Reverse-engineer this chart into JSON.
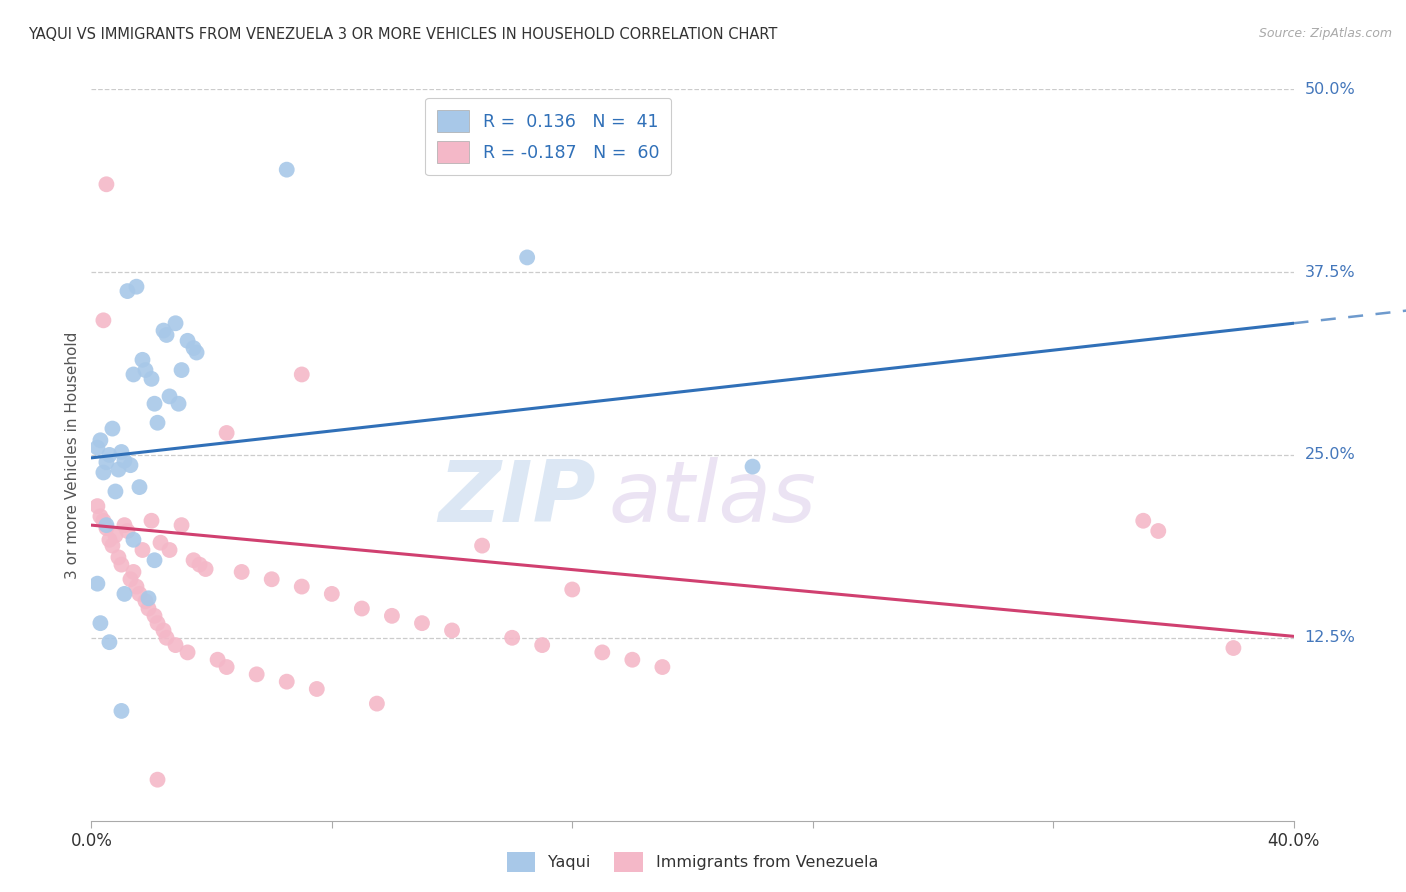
{
  "title": "YAQUI VS IMMIGRANTS FROM VENEZUELA 3 OR MORE VEHICLES IN HOUSEHOLD CORRELATION CHART",
  "source": "Source: ZipAtlas.com",
  "ylabel": "3 or more Vehicles in Household",
  "xlim": [
    0.0,
    40.0
  ],
  "ylim": [
    0.0,
    50.0
  ],
  "ytick_vals": [
    12.5,
    25.0,
    37.5,
    50.0
  ],
  "ytick_labels": [
    "12.5%",
    "25.0%",
    "37.5%",
    "50.0%"
  ],
  "legend_label1": "Yaqui",
  "legend_label2": "Immigrants from Venezuela",
  "blue_color": "#a8c8e8",
  "pink_color": "#f4b8c8",
  "blue_line_color": "#3070b8",
  "pink_line_color": "#d04070",
  "blue_intercept": 24.8,
  "blue_slope": 0.23,
  "pink_intercept": 20.2,
  "pink_slope": -0.19,
  "blue_scatter": [
    [
      0.2,
      25.5
    ],
    [
      0.3,
      26.0
    ],
    [
      0.4,
      23.8
    ],
    [
      0.5,
      24.5
    ],
    [
      0.6,
      25.0
    ],
    [
      0.7,
      26.8
    ],
    [
      0.8,
      22.5
    ],
    [
      0.9,
      24.0
    ],
    [
      1.0,
      25.2
    ],
    [
      1.1,
      24.6
    ],
    [
      1.2,
      36.2
    ],
    [
      1.3,
      24.3
    ],
    [
      1.4,
      30.5
    ],
    [
      1.5,
      36.5
    ],
    [
      1.6,
      22.8
    ],
    [
      1.7,
      31.5
    ],
    [
      1.8,
      30.8
    ],
    [
      1.9,
      15.2
    ],
    [
      2.0,
      30.2
    ],
    [
      2.1,
      17.8
    ],
    [
      2.2,
      27.2
    ],
    [
      2.4,
      33.5
    ],
    [
      2.5,
      33.2
    ],
    [
      2.6,
      29.0
    ],
    [
      2.8,
      34.0
    ],
    [
      2.9,
      28.5
    ],
    [
      3.0,
      30.8
    ],
    [
      3.2,
      32.8
    ],
    [
      3.4,
      32.3
    ],
    [
      3.5,
      32.0
    ],
    [
      0.3,
      13.5
    ],
    [
      0.5,
      20.2
    ],
    [
      0.6,
      12.2
    ],
    [
      1.0,
      7.5
    ],
    [
      1.4,
      19.2
    ],
    [
      2.1,
      28.5
    ],
    [
      6.5,
      44.5
    ],
    [
      14.5,
      38.5
    ],
    [
      22.0,
      24.2
    ],
    [
      0.2,
      16.2
    ],
    [
      1.1,
      15.5
    ]
  ],
  "pink_scatter": [
    [
      0.2,
      21.5
    ],
    [
      0.3,
      20.8
    ],
    [
      0.4,
      20.5
    ],
    [
      0.5,
      20.0
    ],
    [
      0.6,
      19.2
    ],
    [
      0.7,
      18.8
    ],
    [
      0.8,
      19.5
    ],
    [
      0.9,
      18.0
    ],
    [
      1.0,
      17.5
    ],
    [
      1.1,
      20.2
    ],
    [
      1.2,
      19.8
    ],
    [
      1.3,
      16.5
    ],
    [
      1.4,
      17.0
    ],
    [
      1.5,
      16.0
    ],
    [
      1.6,
      15.5
    ],
    [
      1.7,
      18.5
    ],
    [
      1.8,
      15.0
    ],
    [
      1.9,
      14.5
    ],
    [
      2.0,
      20.5
    ],
    [
      2.1,
      14.0
    ],
    [
      2.2,
      13.5
    ],
    [
      2.3,
      19.0
    ],
    [
      2.4,
      13.0
    ],
    [
      2.5,
      12.5
    ],
    [
      2.6,
      18.5
    ],
    [
      2.8,
      12.0
    ],
    [
      3.0,
      20.2
    ],
    [
      3.2,
      11.5
    ],
    [
      3.4,
      17.8
    ],
    [
      3.6,
      17.5
    ],
    [
      3.8,
      17.2
    ],
    [
      4.2,
      11.0
    ],
    [
      4.5,
      10.5
    ],
    [
      5.0,
      17.0
    ],
    [
      5.5,
      10.0
    ],
    [
      6.0,
      16.5
    ],
    [
      6.5,
      9.5
    ],
    [
      7.0,
      16.0
    ],
    [
      7.5,
      9.0
    ],
    [
      8.0,
      15.5
    ],
    [
      9.0,
      14.5
    ],
    [
      9.5,
      8.0
    ],
    [
      10.0,
      14.0
    ],
    [
      11.0,
      13.5
    ],
    [
      12.0,
      13.0
    ],
    [
      13.0,
      18.8
    ],
    [
      14.0,
      12.5
    ],
    [
      15.0,
      12.0
    ],
    [
      16.0,
      15.8
    ],
    [
      17.0,
      11.5
    ],
    [
      18.0,
      11.0
    ],
    [
      19.0,
      10.5
    ],
    [
      0.5,
      43.5
    ],
    [
      7.0,
      30.5
    ],
    [
      4.5,
      26.5
    ],
    [
      0.4,
      34.2
    ],
    [
      35.0,
      20.5
    ],
    [
      35.5,
      19.8
    ],
    [
      38.0,
      11.8
    ],
    [
      2.2,
      2.8
    ]
  ],
  "watermark_zip": "ZIP",
  "watermark_atlas": "atlas",
  "background_color": "#ffffff",
  "grid_color": "#cccccc",
  "tick_label_color": "#4477bb"
}
